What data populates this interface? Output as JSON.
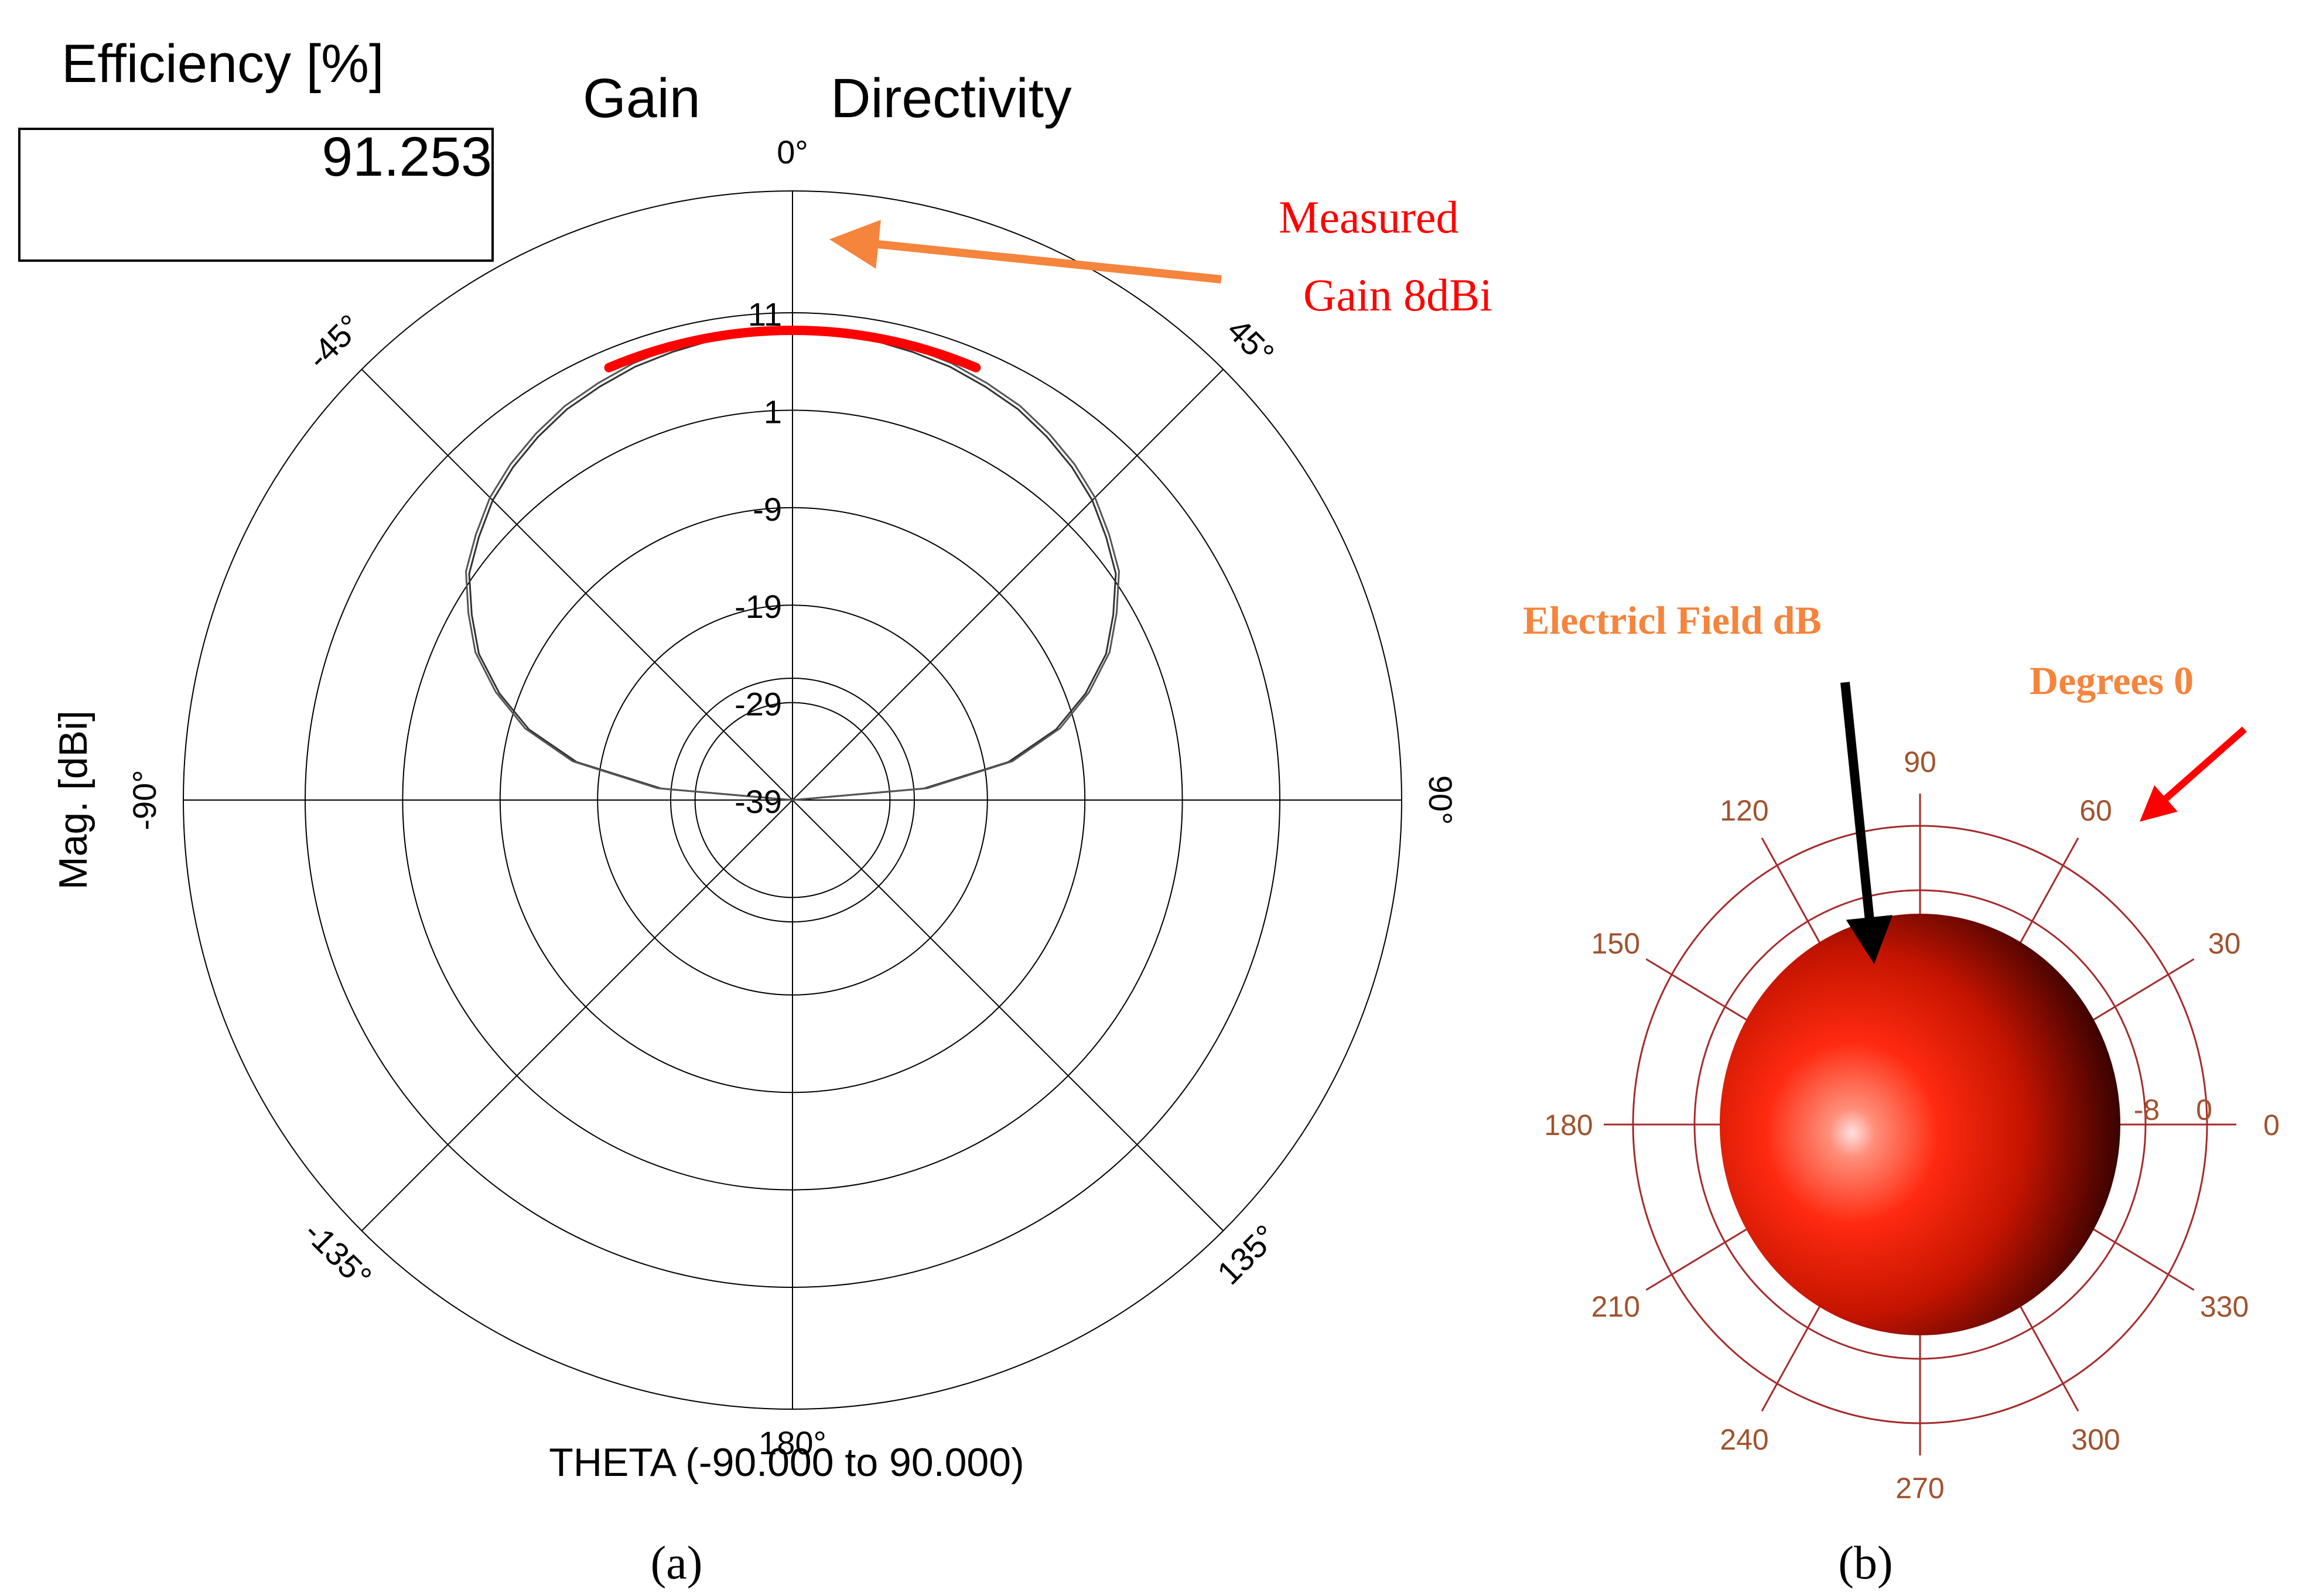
{
  "colors": {
    "measured": "#ff0000",
    "arrow_orange": "#f5843c",
    "annotation_orange": "#f5843c",
    "polar_grid_b": "#a52a2a",
    "tick_label_b": "#a0522d"
  },
  "panel_a": {
    "efficiency_label": "Efficiency [%]",
    "efficiency_value": "91.253",
    "legend_gain": "Gain",
    "legend_directivity": "Directivity",
    "measured_label_line1": "Measured",
    "measured_label_line2": "Gain 8dBi",
    "caption": "(a)"
  },
  "panel_b": {
    "field_label": "Electricl Field dB",
    "degrees_label": "Degrees 0",
    "caption": "(b)"
  },
  "chart_data": [
    {
      "type": "polar-line",
      "xlabel": "THETA (-90.000 to 90.000)",
      "ylabel": "Mag. [dBi]",
      "angle_ticks": [
        {
          "deg": 0,
          "label": "0°"
        },
        {
          "deg": 45,
          "label": "45°"
        },
        {
          "deg": 90,
          "label": "90°"
        },
        {
          "deg": 135,
          "label": "135°"
        },
        {
          "deg": 180,
          "label": "180°"
        },
        {
          "deg": -135,
          "label": "-135°"
        },
        {
          "deg": -90,
          "label": "-90°"
        },
        {
          "deg": -45,
          "label": "-45°"
        }
      ],
      "radial_ticks": [
        11,
        1,
        -9,
        -19,
        -29,
        -39
      ],
      "rlim": [
        -39,
        11
      ],
      "angle_range": [
        -90,
        90
      ],
      "series": [
        {
          "name": "Gain",
          "theta": [
            -90,
            -85,
            -80,
            -75,
            -70,
            -65,
            -60,
            -55,
            -50,
            -45,
            -40,
            -35,
            -30,
            -25,
            -20,
            -15,
            -10,
            -5,
            0,
            5,
            10,
            15,
            20,
            25,
            30,
            35,
            40,
            45,
            50,
            55,
            60,
            65,
            70,
            75,
            80,
            85,
            90
          ],
          "values": [
            -39,
            -25.5,
            -16.5,
            -11,
            -7,
            -3.5,
            -1,
            1.5,
            3,
            4.5,
            5.6,
            6.5,
            7.3,
            7.8,
            8.3,
            8.6,
            8.9,
            9,
            9.05,
            9,
            8.9,
            8.6,
            8.3,
            7.8,
            7.3,
            6.5,
            5.6,
            4.5,
            3,
            1.5,
            -1,
            -3.5,
            -7,
            -11,
            -16.5,
            -25.5,
            -39
          ]
        },
        {
          "name": "Directivity",
          "theta": [
            -90,
            -85,
            -80,
            -75,
            -70,
            -65,
            -60,
            -55,
            -50,
            -45,
            -40,
            -35,
            -30,
            -25,
            -20,
            -15,
            -10,
            -5,
            0,
            5,
            10,
            15,
            20,
            25,
            30,
            35,
            40,
            45,
            50,
            55,
            60,
            65,
            70,
            75,
            80,
            85,
            90
          ],
          "values": [
            -39,
            -25.1,
            -16.1,
            -10.6,
            -6.6,
            -3.1,
            -0.6,
            1.9,
            3.4,
            4.9,
            6,
            6.9,
            7.7,
            8.2,
            8.7,
            9,
            9.3,
            9.4,
            9.45,
            9.4,
            9.3,
            9,
            8.7,
            8.2,
            7.7,
            6.9,
            6,
            4.9,
            3.4,
            1.9,
            -0.6,
            -3.1,
            -6.6,
            -10.6,
            -16.1,
            -25.1,
            -39
          ]
        }
      ],
      "measured_arc": {
        "theta_range": [
          -23,
          23
        ],
        "value": 8
      }
    },
    {
      "type": "polar-3d-pattern",
      "angle_ticks": [
        0,
        30,
        60,
        90,
        120,
        150,
        180,
        210,
        240,
        270,
        300,
        330
      ],
      "radial_ticks": [
        -8,
        0
      ],
      "pattern": "isotropic sphere"
    }
  ]
}
